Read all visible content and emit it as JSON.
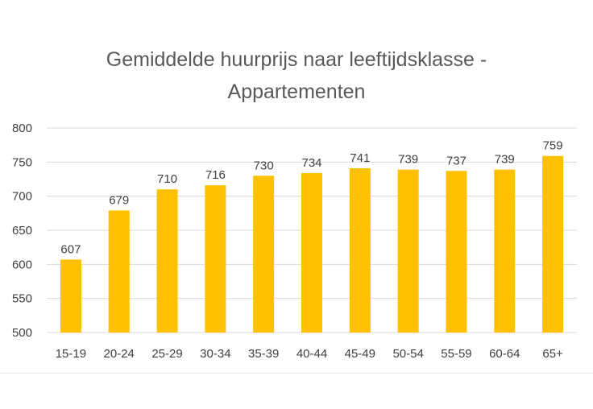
{
  "chart_data": {
    "type": "bar",
    "title_lines": [
      "Gemiddelde huurprijs naar leeftijdsklasse -",
      "Appartementen"
    ],
    "categories": [
      "15-19",
      "20-24",
      "25-29",
      "30-34",
      "35-39",
      "40-44",
      "45-49",
      "50-54",
      "55-59",
      "60-64",
      "65+"
    ],
    "values": [
      607,
      679,
      710,
      716,
      730,
      734,
      741,
      739,
      737,
      739,
      759
    ],
    "ylim": [
      500,
      800
    ],
    "yticks": [
      500,
      550,
      600,
      650,
      700,
      750,
      800
    ],
    "grid": true,
    "legend": "none",
    "colors": {
      "bar": "#FFC000",
      "grid": "#D9D9D9",
      "text": "#404040",
      "title": "#595959"
    }
  }
}
